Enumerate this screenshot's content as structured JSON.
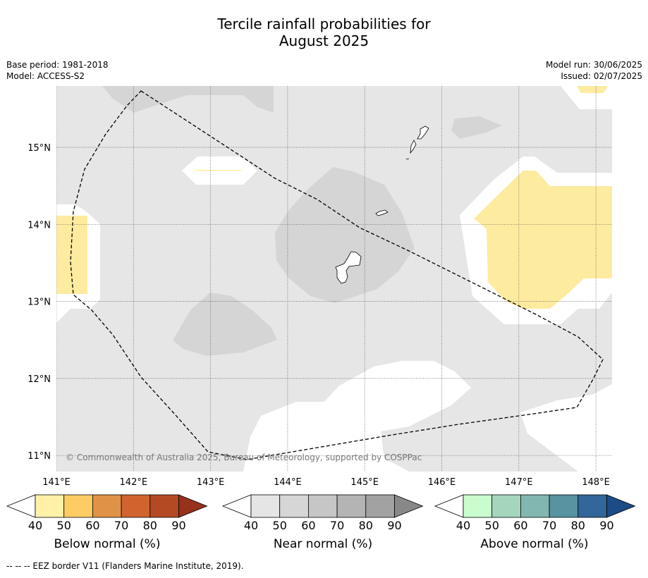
{
  "title_line1": "Tercile rainfall probabilities for",
  "title_line2": "August 2025",
  "meta": {
    "base_period": "Base period: 1981-2018",
    "model": "Model: ACCESS-S2",
    "model_run": "Model run: 30/06/2025",
    "issued": "Issued: 02/07/2025"
  },
  "map": {
    "lon_range": [
      140.9,
      148.2
    ],
    "lat_range": [
      10.8,
      15.75
    ],
    "lon_ticks": [
      "141°E",
      "142°E",
      "143°E",
      "144°E",
      "145°E",
      "146°E",
      "147°E",
      "148°E"
    ],
    "lat_ticks": [
      "15°N",
      "14°N",
      "13°N",
      "12°N",
      "11°N"
    ],
    "copyright": "© Commonwealth of Australia 2025, Bureau of Meteorology, supported by COSPPac",
    "background_color": "#e6e6e6",
    "colors": {
      "near_normal_50": "#d5d5d5",
      "below_normal_40": "#fdeba0",
      "no_signal": "#ffffff"
    }
  },
  "colorbars": {
    "below": {
      "label": "Below normal (%)",
      "ticks": [
        "40",
        "50",
        "60",
        "70",
        "80",
        "90"
      ],
      "colors": [
        "#fff1a8",
        "#fdcc65",
        "#e09246",
        "#d0642f",
        "#b34a24",
        "#97311c"
      ]
    },
    "near": {
      "label": "Near normal (%)",
      "ticks": [
        "40",
        "50",
        "60",
        "70",
        "80",
        "90"
      ],
      "colors": [
        "#e5e5e5",
        "#d6d6d6",
        "#c6c6c6",
        "#b4b4b4",
        "#a2a2a2",
        "#888888"
      ]
    },
    "above": {
      "label": "Above normal (%)",
      "ticks": [
        "40",
        "50",
        "60",
        "70",
        "80",
        "90"
      ],
      "colors": [
        "#c9fcce",
        "#a4d6bd",
        "#82b6b0",
        "#5793a0",
        "#33669a",
        "#1d4b86"
      ]
    }
  },
  "footer": "--  --  -- EEZ border V11 (Flanders Marine Institute, 2019)."
}
